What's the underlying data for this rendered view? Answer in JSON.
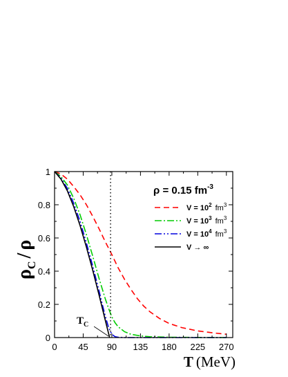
{
  "chart_data": {
    "type": "line",
    "xlabel": {
      "symbol": "T",
      "unit": "(MeV)"
    },
    "ylabel": {
      "num": "ρ",
      "num_sub": "C",
      "sep": "/",
      "den": "ρ"
    },
    "xlim": [
      0,
      280
    ],
    "ylim": [
      0,
      1
    ],
    "x_ticks": [
      0,
      45,
      90,
      135,
      180,
      225,
      270
    ],
    "y_ticks": [
      0,
      0.2,
      0.4,
      0.6,
      0.8,
      1
    ],
    "y_tick_labels": [
      "0",
      "0.2",
      "0.4",
      "0.6",
      "0.8",
      "1"
    ],
    "grid": false,
    "annotation": {
      "text": "ρ = 0.15 fm",
      "sup": "-3"
    },
    "critical_temperature": {
      "x": 88,
      "label": "T",
      "sub": "C"
    },
    "legend_position": "right",
    "series": [
      {
        "name": "V = 10^2 fm^3",
        "label_parts": [
          "V = 10",
          "2",
          " fm",
          "3"
        ],
        "color": "#ff0000",
        "dash": "8,5",
        "x": [
          0,
          10,
          20,
          30,
          40,
          50,
          60,
          70,
          80,
          90,
          100,
          110,
          120,
          130,
          140,
          150,
          165,
          180,
          200,
          225,
          250,
          270
        ],
        "y": [
          1.0,
          0.985,
          0.955,
          0.91,
          0.86,
          0.8,
          0.73,
          0.655,
          0.575,
          0.5,
          0.42,
          0.35,
          0.29,
          0.235,
          0.19,
          0.155,
          0.115,
          0.085,
          0.06,
          0.04,
          0.028,
          0.02
        ]
      },
      {
        "name": "V = 10^3 fm^3",
        "label_parts": [
          "V = 10",
          "3",
          " fm",
          "3"
        ],
        "color": "#00cc00",
        "dash": "10,3,2,3",
        "x": [
          0,
          10,
          20,
          30,
          40,
          50,
          60,
          70,
          80,
          85,
          90,
          95,
          100,
          110,
          120,
          135,
          150,
          180,
          225,
          270
        ],
        "y": [
          1.0,
          0.97,
          0.92,
          0.84,
          0.74,
          0.62,
          0.49,
          0.355,
          0.23,
          0.175,
          0.125,
          0.09,
          0.065,
          0.035,
          0.02,
          0.01,
          0.005,
          0.002,
          0.001,
          0.0
        ]
      },
      {
        "name": "V = 10^4 fm^3",
        "label_parts": [
          "V = 10",
          "4",
          " fm",
          "3"
        ],
        "color": "#0000dd",
        "dash": "10,3,2,3,2,3",
        "x": [
          0,
          10,
          20,
          30,
          40,
          50,
          60,
          70,
          75,
          80,
          85,
          90,
          95,
          100,
          110,
          135,
          180,
          270
        ],
        "y": [
          1.0,
          0.96,
          0.9,
          0.81,
          0.7,
          0.57,
          0.43,
          0.28,
          0.2,
          0.125,
          0.06,
          0.02,
          0.006,
          0.002,
          0.0,
          0.0,
          0.0,
          0.0
        ]
      },
      {
        "name": "V → ∞",
        "label_parts": [
          "V → ∞"
        ],
        "color": "#000000",
        "dash": "",
        "x": [
          0,
          10,
          20,
          30,
          40,
          50,
          60,
          70,
          80,
          86.5
        ],
        "y": [
          1.0,
          0.955,
          0.885,
          0.79,
          0.675,
          0.545,
          0.405,
          0.255,
          0.1,
          0.0
        ]
      }
    ]
  }
}
